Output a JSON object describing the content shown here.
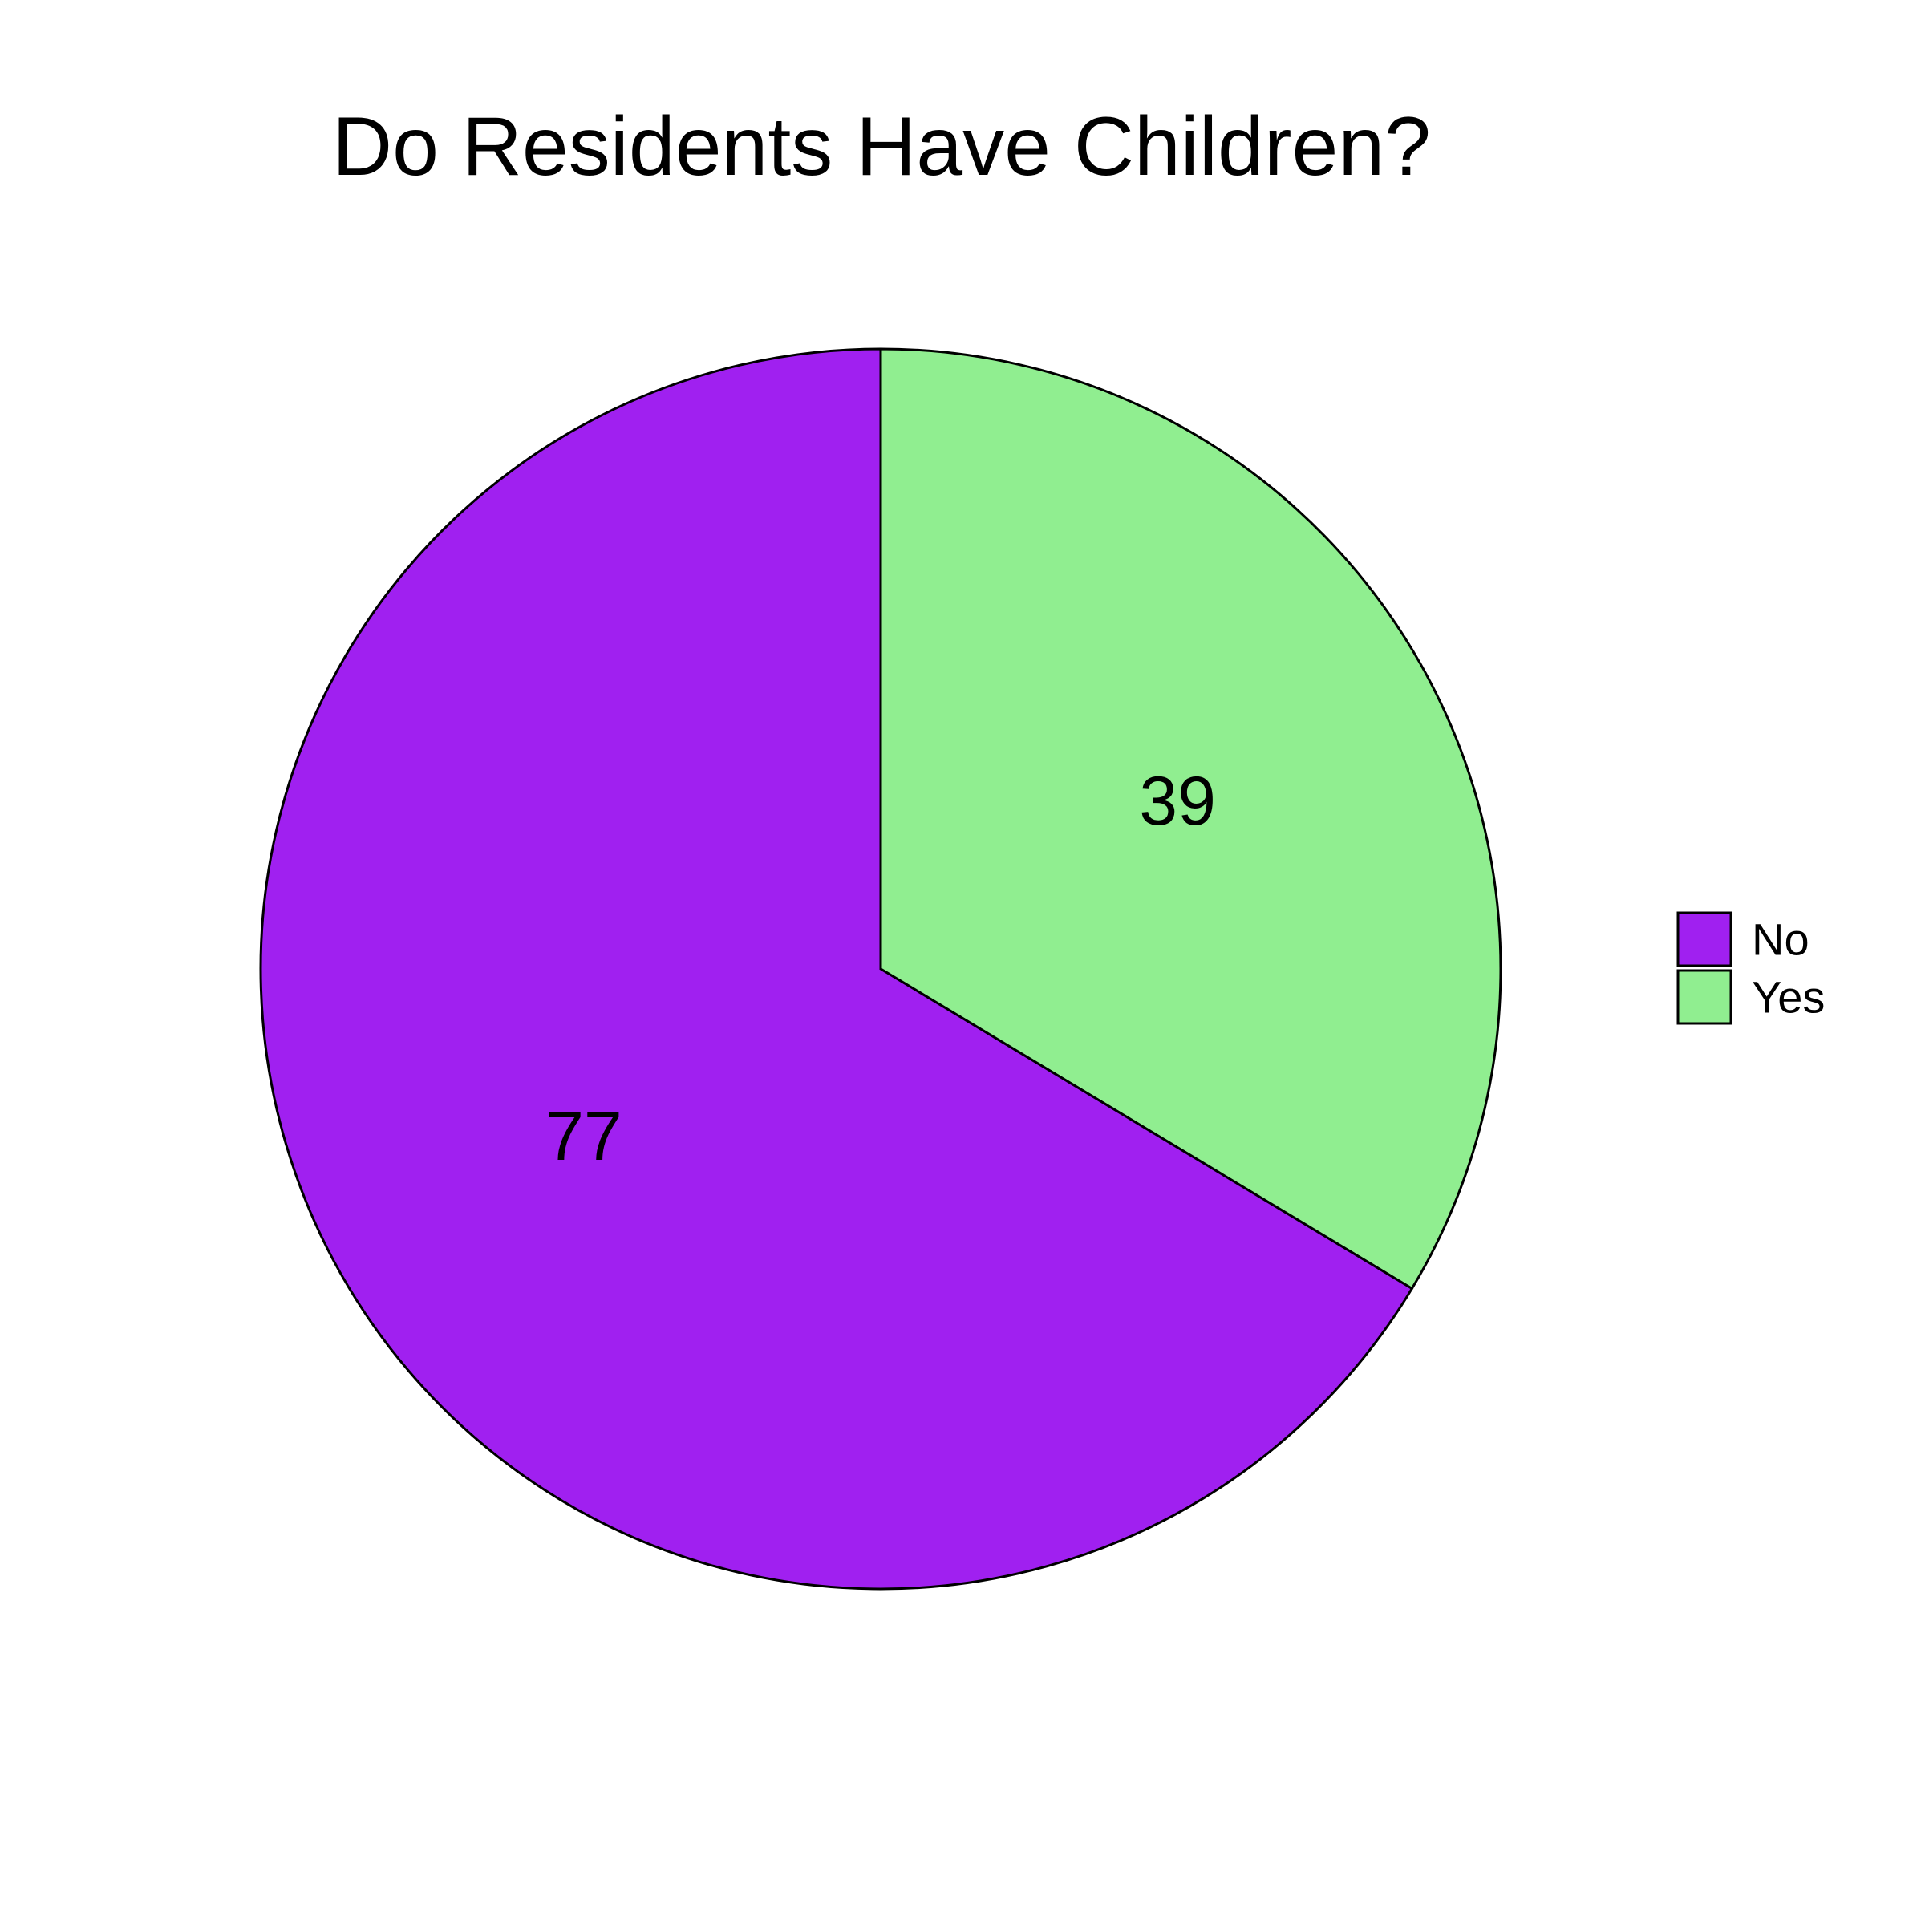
{
  "chart_data": {
    "type": "pie",
    "title": "Do Residents Have Children?",
    "categories": [
      "No",
      "Yes"
    ],
    "values": [
      77,
      39
    ],
    "colors": [
      "#A020F0",
      "#90EE90"
    ],
    "start_angle_deg": 0,
    "direction": "counterclockwise",
    "legend": {
      "position": "right",
      "entries": [
        "No",
        "Yes"
      ]
    },
    "stroke_color": "#000000"
  }
}
